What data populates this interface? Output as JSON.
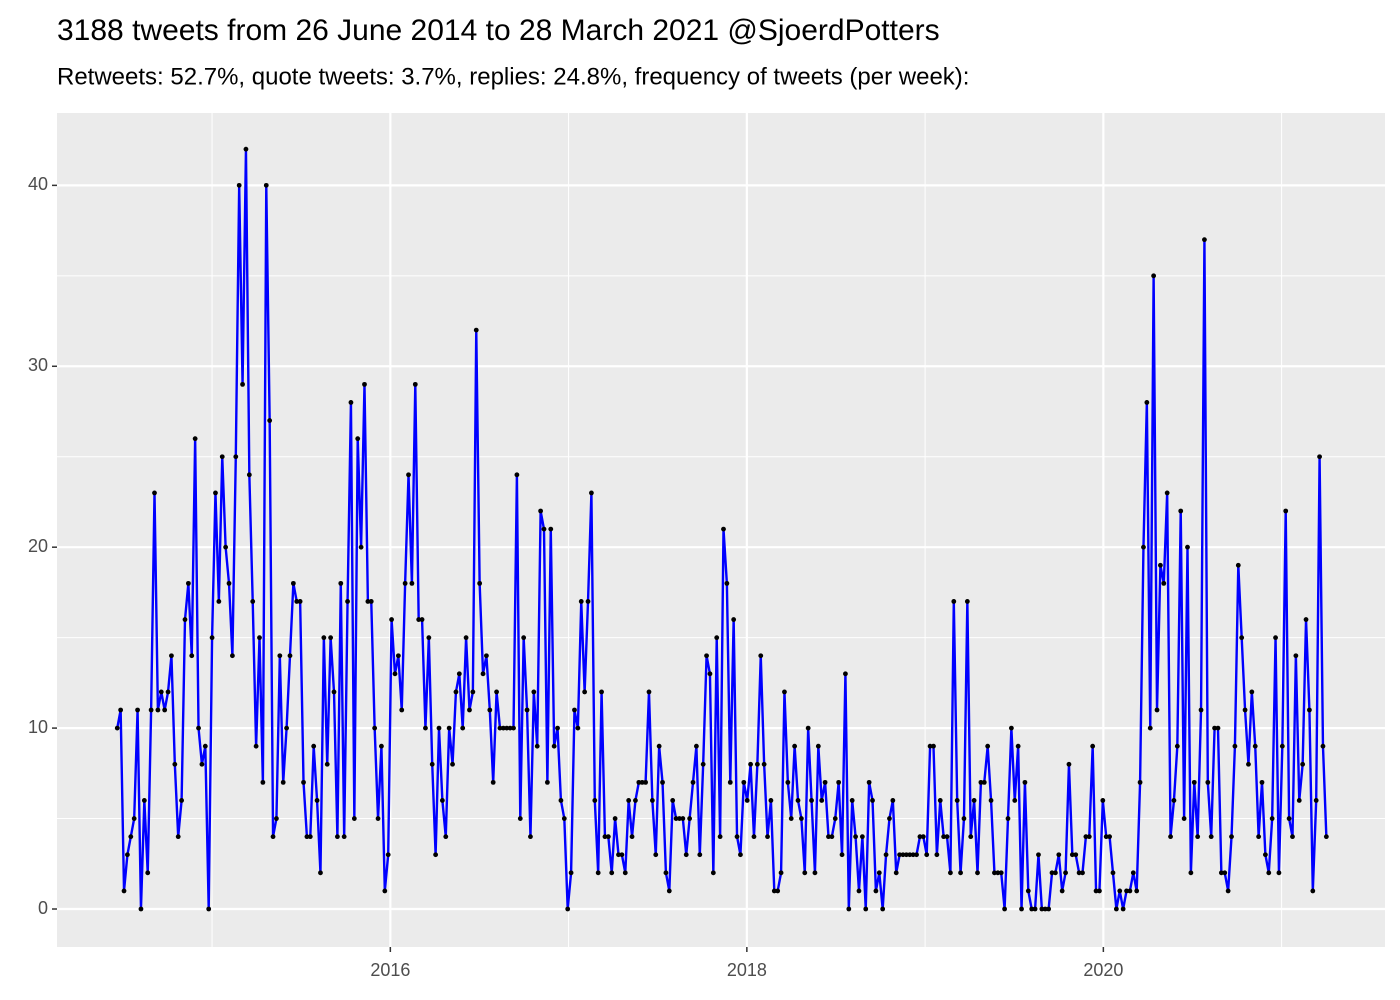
{
  "chart_data": {
    "type": "line",
    "title": "3188 tweets from 26 June 2014 to 28 March 2021 @SjoerdPotters",
    "subtitle": "Retweets: 52.7%, quote tweets: 3.7%, replies: 24.8%, frequency of tweets (per week):",
    "color": "#0000ff",
    "marker_color": "#000000",
    "xlim": [
      2014.13,
      2021.58
    ],
    "xticks": [
      2016,
      2018,
      2020
    ],
    "ylim": [
      -2.1,
      44
    ],
    "yticks": [
      0,
      10,
      20,
      30,
      40
    ],
    "grid": true,
    "x": [
      2014.468,
      2014.487,
      2014.506,
      2014.525,
      2014.544,
      2014.563,
      2014.582,
      2014.601,
      2014.62,
      2014.639,
      2014.658,
      2014.677,
      2014.696,
      2014.715,
      2014.734,
      2014.753,
      2014.772,
      2014.791,
      2014.81,
      2014.829,
      2014.848,
      2014.867,
      2014.886,
      2014.905,
      2014.924,
      2014.943,
      2014.962,
      2014.981,
      2015.0,
      2015.019,
      2015.038,
      2015.057,
      2015.076,
      2015.095,
      2015.114,
      2015.133,
      2015.152,
      2015.171,
      2015.19,
      2015.209,
      2015.228,
      2015.247,
      2015.266,
      2015.285,
      2015.304,
      2015.323,
      2015.342,
      2015.361,
      2015.38,
      2015.399,
      2015.418,
      2015.437,
      2015.456,
      2015.475,
      2015.494,
      2015.513,
      2015.532,
      2015.551,
      2015.57,
      2015.589,
      2015.608,
      2015.627,
      2015.646,
      2015.665,
      2015.684,
      2015.703,
      2015.722,
      2015.741,
      2015.76,
      2015.779,
      2015.798,
      2015.817,
      2015.836,
      2015.855,
      2015.874,
      2015.893,
      2015.912,
      2015.931,
      2015.95,
      2015.969,
      2015.988,
      2016.007,
      2016.026,
      2016.045,
      2016.064,
      2016.083,
      2016.102,
      2016.121,
      2016.14,
      2016.159,
      2016.178,
      2016.197,
      2016.216,
      2016.235,
      2016.254,
      2016.273,
      2016.292,
      2016.311,
      2016.33,
      2016.349,
      2016.368,
      2016.387,
      2016.406,
      2016.425,
      2016.444,
      2016.463,
      2016.482,
      2016.501,
      2016.52,
      2016.539,
      2016.558,
      2016.577,
      2016.596,
      2016.615,
      2016.634,
      2016.653,
      2016.672,
      2016.691,
      2016.71,
      2016.729,
      2016.748,
      2016.767,
      2016.786,
      2016.805,
      2016.824,
      2016.843,
      2016.862,
      2016.881,
      2016.9,
      2016.919,
      2016.938,
      2016.957,
      2016.976,
      2016.995,
      2017.014,
      2017.033,
      2017.052,
      2017.071,
      2017.09,
      2017.109,
      2017.128,
      2017.147,
      2017.166,
      2017.185,
      2017.204,
      2017.223,
      2017.242,
      2017.261,
      2017.28,
      2017.299,
      2017.318,
      2017.337,
      2017.356,
      2017.375,
      2017.394,
      2017.413,
      2017.432,
      2017.451,
      2017.47,
      2017.489,
      2017.508,
      2017.527,
      2017.546,
      2017.565,
      2017.584,
      2017.603,
      2017.622,
      2017.641,
      2017.66,
      2017.679,
      2017.698,
      2017.717,
      2017.736,
      2017.755,
      2017.774,
      2017.793,
      2017.812,
      2017.831,
      2017.85,
      2017.869,
      2017.888,
      2017.907,
      2017.926,
      2017.945,
      2017.964,
      2017.983,
      2018.002,
      2018.021,
      2018.04,
      2018.059,
      2018.078,
      2018.097,
      2018.116,
      2018.135,
      2018.154,
      2018.173,
      2018.192,
      2018.211,
      2018.23,
      2018.249,
      2018.268,
      2018.287,
      2018.306,
      2018.325,
      2018.344,
      2018.363,
      2018.382,
      2018.401,
      2018.42,
      2018.439,
      2018.458,
      2018.477,
      2018.496,
      2018.515,
      2018.534,
      2018.553,
      2018.572,
      2018.591,
      2018.61,
      2018.629,
      2018.648,
      2018.667,
      2018.686,
      2018.705,
      2018.724,
      2018.743,
      2018.762,
      2018.781,
      2018.8,
      2018.819,
      2018.838,
      2018.857,
      2018.876,
      2018.895,
      2018.914,
      2018.933,
      2018.952,
      2018.971,
      2018.99,
      2019.009,
      2019.028,
      2019.047,
      2019.066,
      2019.085,
      2019.104,
      2019.123,
      2019.142,
      2019.161,
      2019.18,
      2019.199,
      2019.218,
      2019.237,
      2019.256,
      2019.275,
      2019.294,
      2019.313,
      2019.332,
      2019.351,
      2019.37,
      2019.389,
      2019.408,
      2019.427,
      2019.446,
      2019.465,
      2019.484,
      2019.503,
      2019.522,
      2019.541,
      2019.56,
      2019.579,
      2019.598,
      2019.617,
      2019.636,
      2019.655,
      2019.674,
      2019.693,
      2019.712,
      2019.731,
      2019.75,
      2019.769,
      2019.788,
      2019.807,
      2019.826,
      2019.845,
      2019.864,
      2019.883,
      2019.902,
      2019.921,
      2019.94,
      2019.959,
      2019.978,
      2019.997,
      2020.016,
      2020.035,
      2020.054,
      2020.073,
      2020.092,
      2020.111,
      2020.13,
      2020.149,
      2020.168,
      2020.187,
      2020.206,
      2020.225,
      2020.244,
      2020.263,
      2020.282,
      2020.301,
      2020.32,
      2020.339,
      2020.358,
      2020.377,
      2020.396,
      2020.415,
      2020.434,
      2020.453,
      2020.472,
      2020.491,
      2020.51,
      2020.529,
      2020.548,
      2020.567,
      2020.586,
      2020.605,
      2020.624,
      2020.643,
      2020.662,
      2020.681,
      2020.7,
      2020.719,
      2020.738,
      2020.757,
      2020.776,
      2020.795,
      2020.814,
      2020.833,
      2020.852,
      2020.871,
      2020.89,
      2020.909,
      2020.928,
      2020.947,
      2020.966,
      2020.985,
      2021.004,
      2021.023,
      2021.042,
      2021.061,
      2021.08,
      2021.099,
      2021.118,
      2021.137,
      2021.156,
      2021.175,
      2021.194,
      2021.213,
      2021.232,
      2021.251
    ],
    "values": [
      10,
      11,
      1,
      3,
      4,
      5,
      11,
      0,
      6,
      2,
      11,
      23,
      11,
      12,
      11,
      12,
      14,
      8,
      4,
      6,
      16,
      18,
      14,
      26,
      10,
      8,
      9,
      0,
      15,
      23,
      17,
      25,
      20,
      18,
      14,
      25,
      40,
      29,
      42,
      24,
      17,
      9,
      15,
      7,
      40,
      27,
      4,
      5,
      14,
      7,
      10,
      14,
      18,
      17,
      17,
      7,
      4,
      4,
      9,
      6,
      2,
      15,
      8,
      15,
      12,
      4,
      18,
      4,
      17,
      28,
      5,
      26,
      20,
      29,
      17,
      17,
      10,
      5,
      9,
      1,
      3,
      16,
      13,
      14,
      11,
      18,
      24,
      18,
      29,
      16,
      16,
      10,
      15,
      8,
      3,
      10,
      6,
      4,
      10,
      8,
      12,
      13,
      10,
      15,
      11,
      12,
      32,
      18,
      13,
      14,
      11,
      7,
      12,
      10,
      10,
      10,
      10,
      10,
      24,
      5,
      15,
      11,
      4,
      12,
      9,
      22,
      21,
      7,
      21,
      9,
      10,
      6,
      5,
      0,
      2,
      11,
      10,
      17,
      12,
      17,
      23,
      6,
      2,
      12,
      4,
      4,
      2,
      5,
      3,
      3,
      2,
      6,
      4,
      6,
      7,
      7,
      7,
      12,
      6,
      3,
      9,
      7,
      2,
      1,
      6,
      5,
      5,
      5,
      3,
      5,
      7,
      9,
      3,
      8,
      14,
      13,
      2,
      15,
      4,
      21,
      18,
      7,
      16,
      4,
      3,
      7,
      6,
      8,
      4,
      8,
      14,
      8,
      4,
      6,
      1,
      1,
      2,
      12,
      7,
      5,
      9,
      6,
      5,
      2,
      10,
      6,
      2,
      9,
      6,
      7,
      4,
      4,
      5,
      7,
      3,
      13,
      0,
      6,
      4,
      1,
      4,
      0,
      7,
      6,
      1,
      2,
      0,
      3,
      5,
      6,
      2,
      3,
      3,
      3,
      3,
      3,
      3,
      4,
      4,
      3,
      9,
      9,
      3,
      6,
      4,
      4,
      2,
      17,
      6,
      2,
      5,
      17,
      4,
      6,
      2,
      7,
      7,
      9,
      6,
      2,
      2,
      2,
      0,
      5,
      10,
      6,
      9,
      0,
      7,
      1,
      0,
      0,
      3,
      0,
      0,
      0,
      2,
      2,
      3,
      1,
      2,
      8,
      3,
      3,
      2,
      2,
      4,
      4,
      9,
      1,
      1,
      6,
      4,
      4,
      2,
      0,
      1,
      0,
      1,
      1,
      2,
      1,
      7,
      20,
      28,
      10,
      35,
      11,
      19,
      18,
      23,
      4,
      6,
      9,
      22,
      5,
      20,
      2,
      7,
      4,
      11,
      37,
      7,
      4,
      10,
      10,
      2,
      2,
      1,
      4,
      9,
      19,
      15,
      11,
      8,
      12,
      9,
      4,
      7,
      3,
      2,
      5,
      15,
      2,
      9,
      22,
      5,
      4,
      14,
      6,
      8,
      16,
      11,
      1,
      6,
      25,
      9,
      4
    ]
  }
}
